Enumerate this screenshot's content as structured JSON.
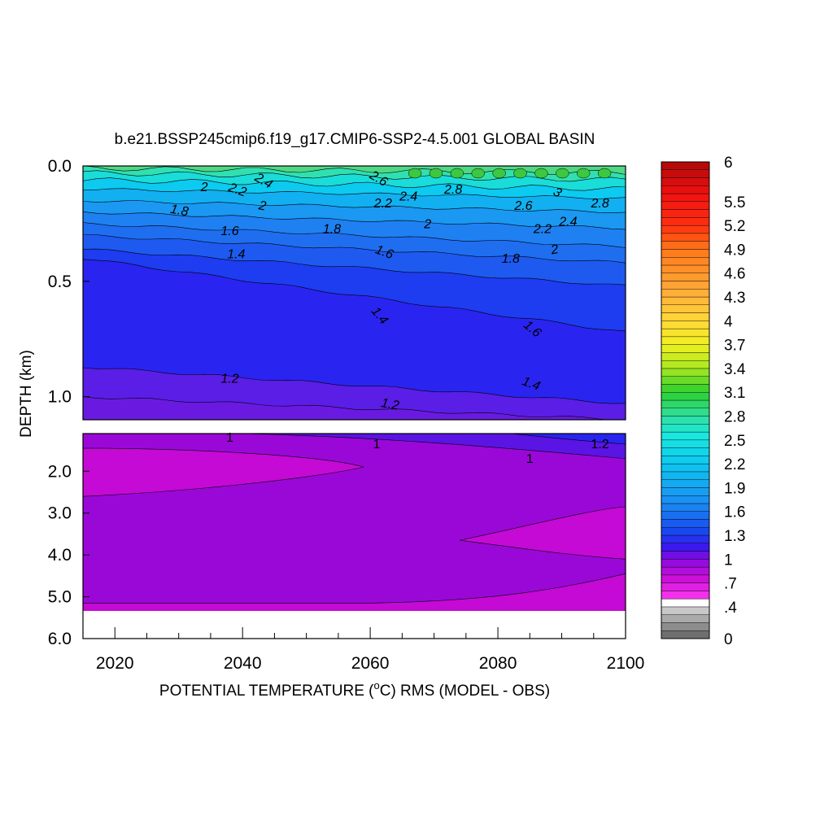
{
  "chart_data": {
    "type": "heatmap",
    "title": "b.e21.BSSP245cmip6.f19_g17.CMIP6-SSP2-4.5.001 GLOBAL BASIN",
    "xlabel_prefix": "POTENTIAL TEMPERATURE (",
    "xlabel_degree": "o",
    "xlabel_suffix": "C) RMS (MODEL - OBS)",
    "ylabel": "DEPTH (km)",
    "xlim": [
      2015,
      2100
    ],
    "x_ticks": [
      "2020",
      "2040",
      "2060",
      "2080",
      "2100"
    ],
    "upper_panel": {
      "ylim": [
        0.0,
        1.1
      ],
      "y_ticks": [
        "0.0",
        "0.5",
        "1.0"
      ],
      "bands": [
        {
          "level": 1.1,
          "color": "#5a1ee6",
          "left_depth": 1.0,
          "right_depth": 1.1
        },
        {
          "level": 1.2,
          "color": "#2a24f0",
          "left_depth": 0.87,
          "right_depth": 1.03
        },
        {
          "level": 1.3,
          "color": "#1e3cf0",
          "left_depth": 0.4,
          "right_depth": 0.72
        },
        {
          "level": 1.4,
          "color": "#1e5af0",
          "left_depth": 0.36,
          "right_depth": 0.52
        },
        {
          "level": 1.5,
          "color": "#1f6ef0",
          "left_depth": 0.3,
          "right_depth": 0.42
        },
        {
          "level": 1.6,
          "color": "#1f80f2",
          "left_depth": 0.25,
          "right_depth": 0.35
        },
        {
          "level": 1.8,
          "color": "#1a98f2",
          "left_depth": 0.2,
          "right_depth": 0.27
        },
        {
          "level": 2.0,
          "color": "#12b0f0",
          "left_depth": 0.15,
          "right_depth": 0.2
        },
        {
          "level": 2.2,
          "color": "#0ccaf0",
          "left_depth": 0.1,
          "right_depth": 0.14
        },
        {
          "level": 2.4,
          "color": "#1adcd8",
          "left_depth": 0.06,
          "right_depth": 0.1
        },
        {
          "level": 2.6,
          "color": "#30e0b0",
          "left_depth": 0.03,
          "right_depth": 0.06
        },
        {
          "level": 2.8,
          "color": "#4fd884",
          "left_depth": 0.01,
          "right_depth": 0.03
        }
      ],
      "contour_labels": [
        "2",
        "2.2",
        "2.4",
        "1.8",
        "2",
        "2.6",
        "2.4",
        "2.2",
        "2.8",
        "3",
        "2.6",
        "2.8",
        "1.6",
        "1.8",
        "2",
        "2.2",
        "2.4",
        "1.4",
        "1.6",
        "1.8",
        "2",
        "1.4",
        "1.6",
        "1.2",
        "1.4",
        "1.2"
      ]
    },
    "lower_panel": {
      "ylim": [
        1.1,
        6.0
      ],
      "y_ticks": [
        "2.0",
        "3.0",
        "4.0",
        "5.0",
        "6.0"
      ],
      "bottom_depth": 5.35,
      "regions": [
        {
          "level": 1.0,
          "color": "#9a08d8",
          "label": "1"
        },
        {
          "level": 0.9,
          "color": "#c40ad4",
          "label": ""
        },
        {
          "level": 1.2,
          "color": "#2a24f0",
          "label": "1.2"
        }
      ],
      "contour_labels": [
        "1",
        "1",
        "1",
        "1.2"
      ]
    },
    "colorbar": {
      "min": 0,
      "max": 6,
      "step": 0.1,
      "labels": [
        "6",
        "5.5",
        "5.2",
        "4.9",
        "4.6",
        "4.3",
        "4",
        "3.7",
        "3.4",
        "3.1",
        "2.8",
        "2.5",
        "2.2",
        "1.9",
        "1.6",
        "1.3",
        "1",
        ".7",
        ".4",
        "0"
      ],
      "stops": [
        {
          "v": 0.0,
          "c": "#606060"
        },
        {
          "v": 0.35,
          "c": "#c8c8c8"
        },
        {
          "v": 0.45,
          "c": "#ffffff"
        },
        {
          "v": 0.5,
          "c": "#ff38f0"
        },
        {
          "v": 0.75,
          "c": "#cc10d8"
        },
        {
          "v": 1.0,
          "c": "#8a0ae0"
        },
        {
          "v": 1.15,
          "c": "#3a18f0"
        },
        {
          "v": 1.35,
          "c": "#1848f0"
        },
        {
          "v": 1.7,
          "c": "#1a8cf4"
        },
        {
          "v": 2.2,
          "c": "#0cc8f0"
        },
        {
          "v": 2.55,
          "c": "#18e8e0"
        },
        {
          "v": 2.8,
          "c": "#30e0a0"
        },
        {
          "v": 3.1,
          "c": "#2ad030"
        },
        {
          "v": 3.4,
          "c": "#a8e820"
        },
        {
          "v": 3.7,
          "c": "#f0f020"
        },
        {
          "v": 4.0,
          "c": "#ffd838"
        },
        {
          "v": 4.4,
          "c": "#ffa838"
        },
        {
          "v": 4.9,
          "c": "#ff7818"
        },
        {
          "v": 5.2,
          "c": "#ff3010"
        },
        {
          "v": 5.6,
          "c": "#f01010"
        },
        {
          "v": 6.0,
          "c": "#b00808"
        }
      ]
    }
  }
}
